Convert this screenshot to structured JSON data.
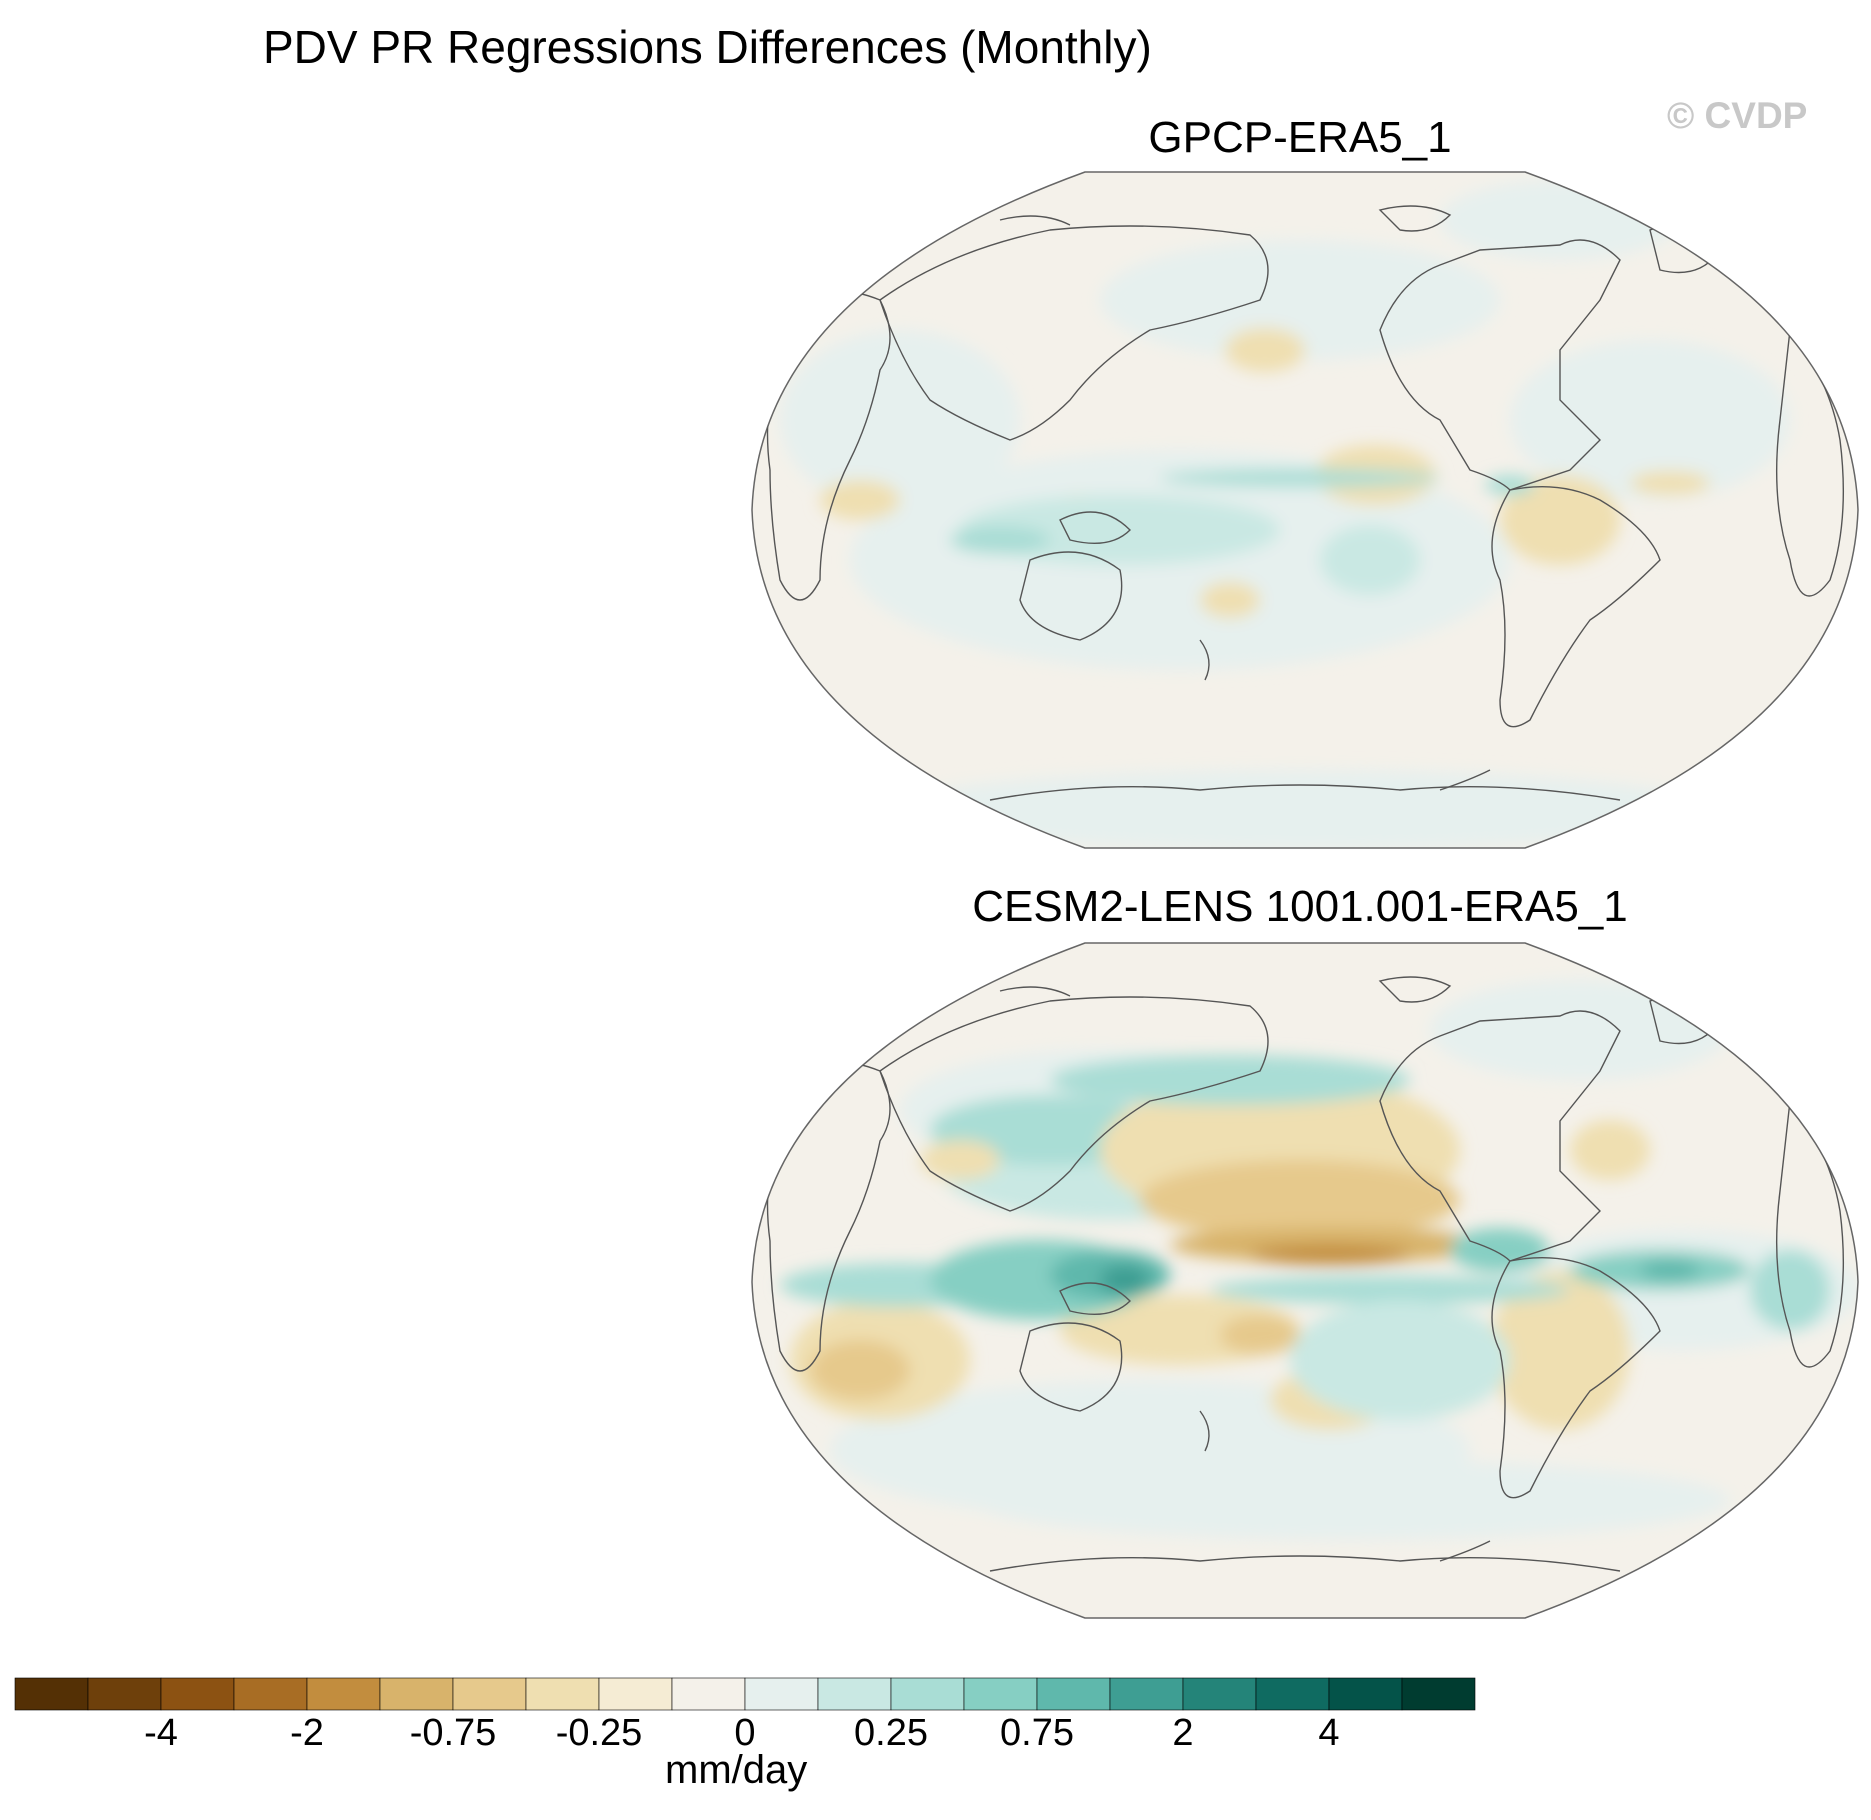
{
  "title": "PDV PR Regressions Differences (Monthly)",
  "watermark": "© CVDP",
  "panels": [
    {
      "id": "p1",
      "title": "GPCP-ERA5_1",
      "projection": "Robinson",
      "variable": "PR regression difference",
      "amplitude": "weak"
    },
    {
      "id": "p2",
      "title": "CESM2-LENS 1001.001-ERA5_1",
      "projection": "Robinson",
      "variable": "PR regression difference",
      "amplitude": "strong"
    }
  ],
  "colorbar": {
    "unit_label": "mm/day",
    "tick_labels": [
      "-4",
      "-2",
      "-0.75",
      "-0.25",
      "0",
      "0.25",
      "0.75",
      "2",
      "4"
    ],
    "colors": [
      "#543005",
      "#6e400b",
      "#8c5212",
      "#a86d24",
      "#c28d3e",
      "#d8b36b",
      "#e6c98c",
      "#efdfb1",
      "#f5ecd4",
      "#f4f1ea",
      "#e6f0ee",
      "#c9e8e3",
      "#a9ddd5",
      "#86cfc3",
      "#5fb8ac",
      "#3e9e93",
      "#248479",
      "#0f6b61",
      "#045349",
      "#003c30"
    ]
  },
  "chart_data": {
    "type": "contour-map",
    "title": "PDV PR Regressions Differences (Monthly)",
    "panels": [
      "GPCP-ERA5_1",
      "CESM2-LENS 1001.001-ERA5_1"
    ],
    "legend": {
      "unit": "mm/day",
      "ticks": [
        -4,
        -2,
        -0.75,
        -0.25,
        0,
        0.25,
        0.75,
        2,
        4
      ]
    }
  }
}
